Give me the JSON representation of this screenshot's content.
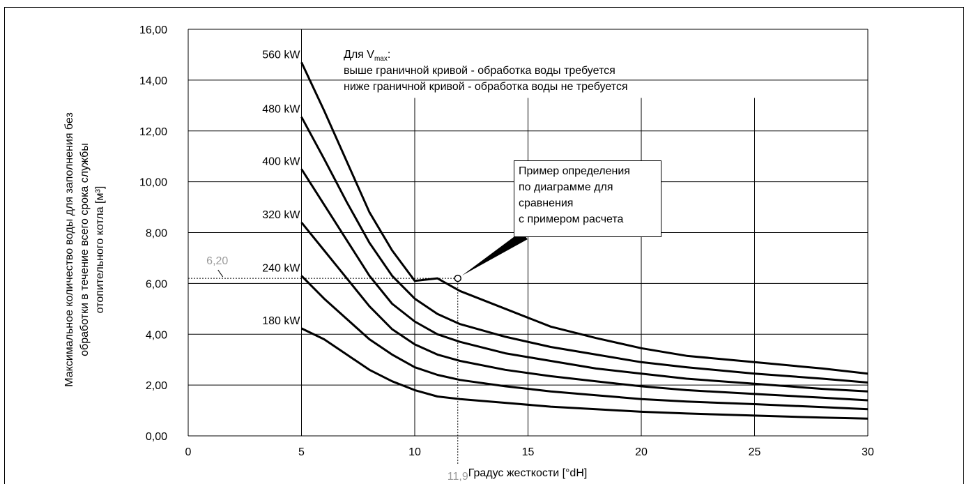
{
  "chart_data": {
    "type": "line",
    "xlabel": "Градус жесткости [°dH]",
    "ylabel_lines": [
      "Максимальное количество воды для заполнения без",
      "обработки в течение всего срока службы",
      "отопительного котла [м³]"
    ],
    "xlim": [
      0,
      30
    ],
    "ylim": [
      0,
      16
    ],
    "x_ticks": [
      "0",
      "5",
      "10",
      "15",
      "20",
      "25",
      "30"
    ],
    "y_ticks": [
      "0,00",
      "2,00",
      "4,00",
      "6,00",
      "8,00",
      "10,00",
      "12,00",
      "14,00",
      "16,00"
    ],
    "grid": true,
    "legend": "none",
    "x": [
      5,
      6,
      7,
      8,
      9,
      10,
      11,
      12,
      14,
      16,
      18,
      20,
      22,
      25,
      28,
      30
    ],
    "series": [
      {
        "name": "180 kW",
        "values": [
          4.23,
          3.8,
          3.2,
          2.6,
          2.15,
          1.8,
          1.55,
          1.45,
          1.3,
          1.15,
          1.05,
          0.95,
          0.88,
          0.8,
          0.72,
          0.68
        ]
      },
      {
        "name": "240 kW",
        "values": [
          6.3,
          5.4,
          4.6,
          3.8,
          3.2,
          2.7,
          2.4,
          2.2,
          1.95,
          1.75,
          1.6,
          1.45,
          1.35,
          1.25,
          1.13,
          1.05
        ]
      },
      {
        "name": "320 kW",
        "values": [
          8.4,
          7.3,
          6.2,
          5.1,
          4.2,
          3.6,
          3.2,
          2.95,
          2.6,
          2.35,
          2.15,
          1.95,
          1.8,
          1.65,
          1.5,
          1.4
        ]
      },
      {
        "name": "400 kW",
        "values": [
          10.5,
          9.1,
          7.7,
          6.3,
          5.2,
          4.5,
          4.0,
          3.7,
          3.25,
          2.95,
          2.65,
          2.45,
          2.25,
          2.05,
          1.85,
          1.75
        ]
      },
      {
        "name": "480 kW",
        "values": [
          12.55,
          10.9,
          9.2,
          7.6,
          6.3,
          5.4,
          4.8,
          4.4,
          3.9,
          3.5,
          3.2,
          2.9,
          2.7,
          2.45,
          2.25,
          2.1
        ]
      },
      {
        "name": "560 kW",
        "values": [
          14.7,
          12.8,
          10.8,
          8.8,
          7.3,
          6.1,
          6.2,
          5.7,
          5.0,
          4.3,
          3.85,
          3.45,
          3.15,
          2.9,
          2.65,
          2.45
        ]
      }
    ],
    "example_point": {
      "x": 11.9,
      "y": 6.2,
      "x_label": "11,9",
      "y_label": "6,20"
    },
    "note_lines": [
      "выше граничной кривой - обработка воды требуется",
      "ниже граничной кривой - обработка воды не требуется"
    ],
    "note_prefix": "Для V",
    "note_sub": "max",
    "note_suffix": ":",
    "callout_lines": [
      "Пример определения",
      "по диаграмме для",
      "сравнения",
      "с примером расчета"
    ]
  }
}
